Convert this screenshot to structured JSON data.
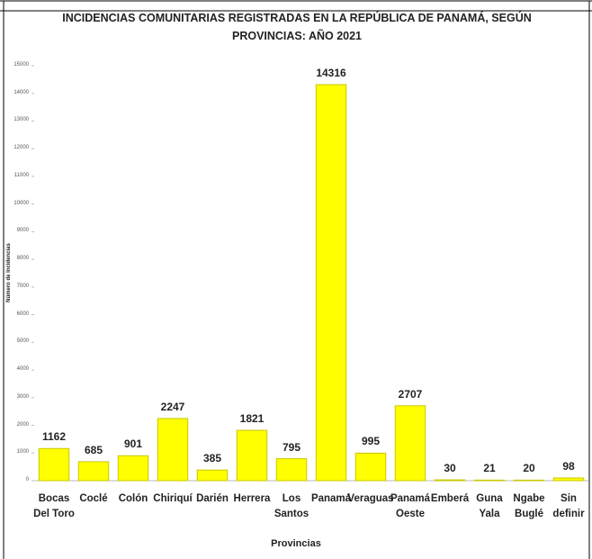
{
  "chart_data": {
    "type": "bar",
    "title": "INCIDENCIAS COMUNITARIAS REGISTRADAS EN LA REPÚBLICA DE PANAMÁ, SEGÚN PROVINCIAS: AÑO 2021",
    "x_label": "Provincias",
    "y_label": "Número de Incidencias",
    "categories": [
      "Bocas\nDel Toro",
      "Coclé",
      "Colón",
      "Chiriquí",
      "Darién",
      "Herrera",
      "Los\nSantos",
      "Panamá",
      "Veraguas",
      "Panamá\nOeste",
      "Emberá",
      "Guna\nYala",
      "Ngabe\nBuglé",
      "Sin\ndefinir"
    ],
    "values": [
      1162,
      685,
      901,
      2247,
      385,
      1821,
      795,
      14316,
      995,
      2707,
      30,
      21,
      20,
      98
    ],
    "color": "#ffff00",
    "ylim": [
      0,
      15000
    ],
    "yticks": [
      0,
      1000,
      2000,
      3000,
      4000,
      5000,
      6000,
      7000,
      8000,
      9000,
      10000,
      11000,
      12000,
      13000,
      14000,
      15000
    ],
    "grid": false
  }
}
